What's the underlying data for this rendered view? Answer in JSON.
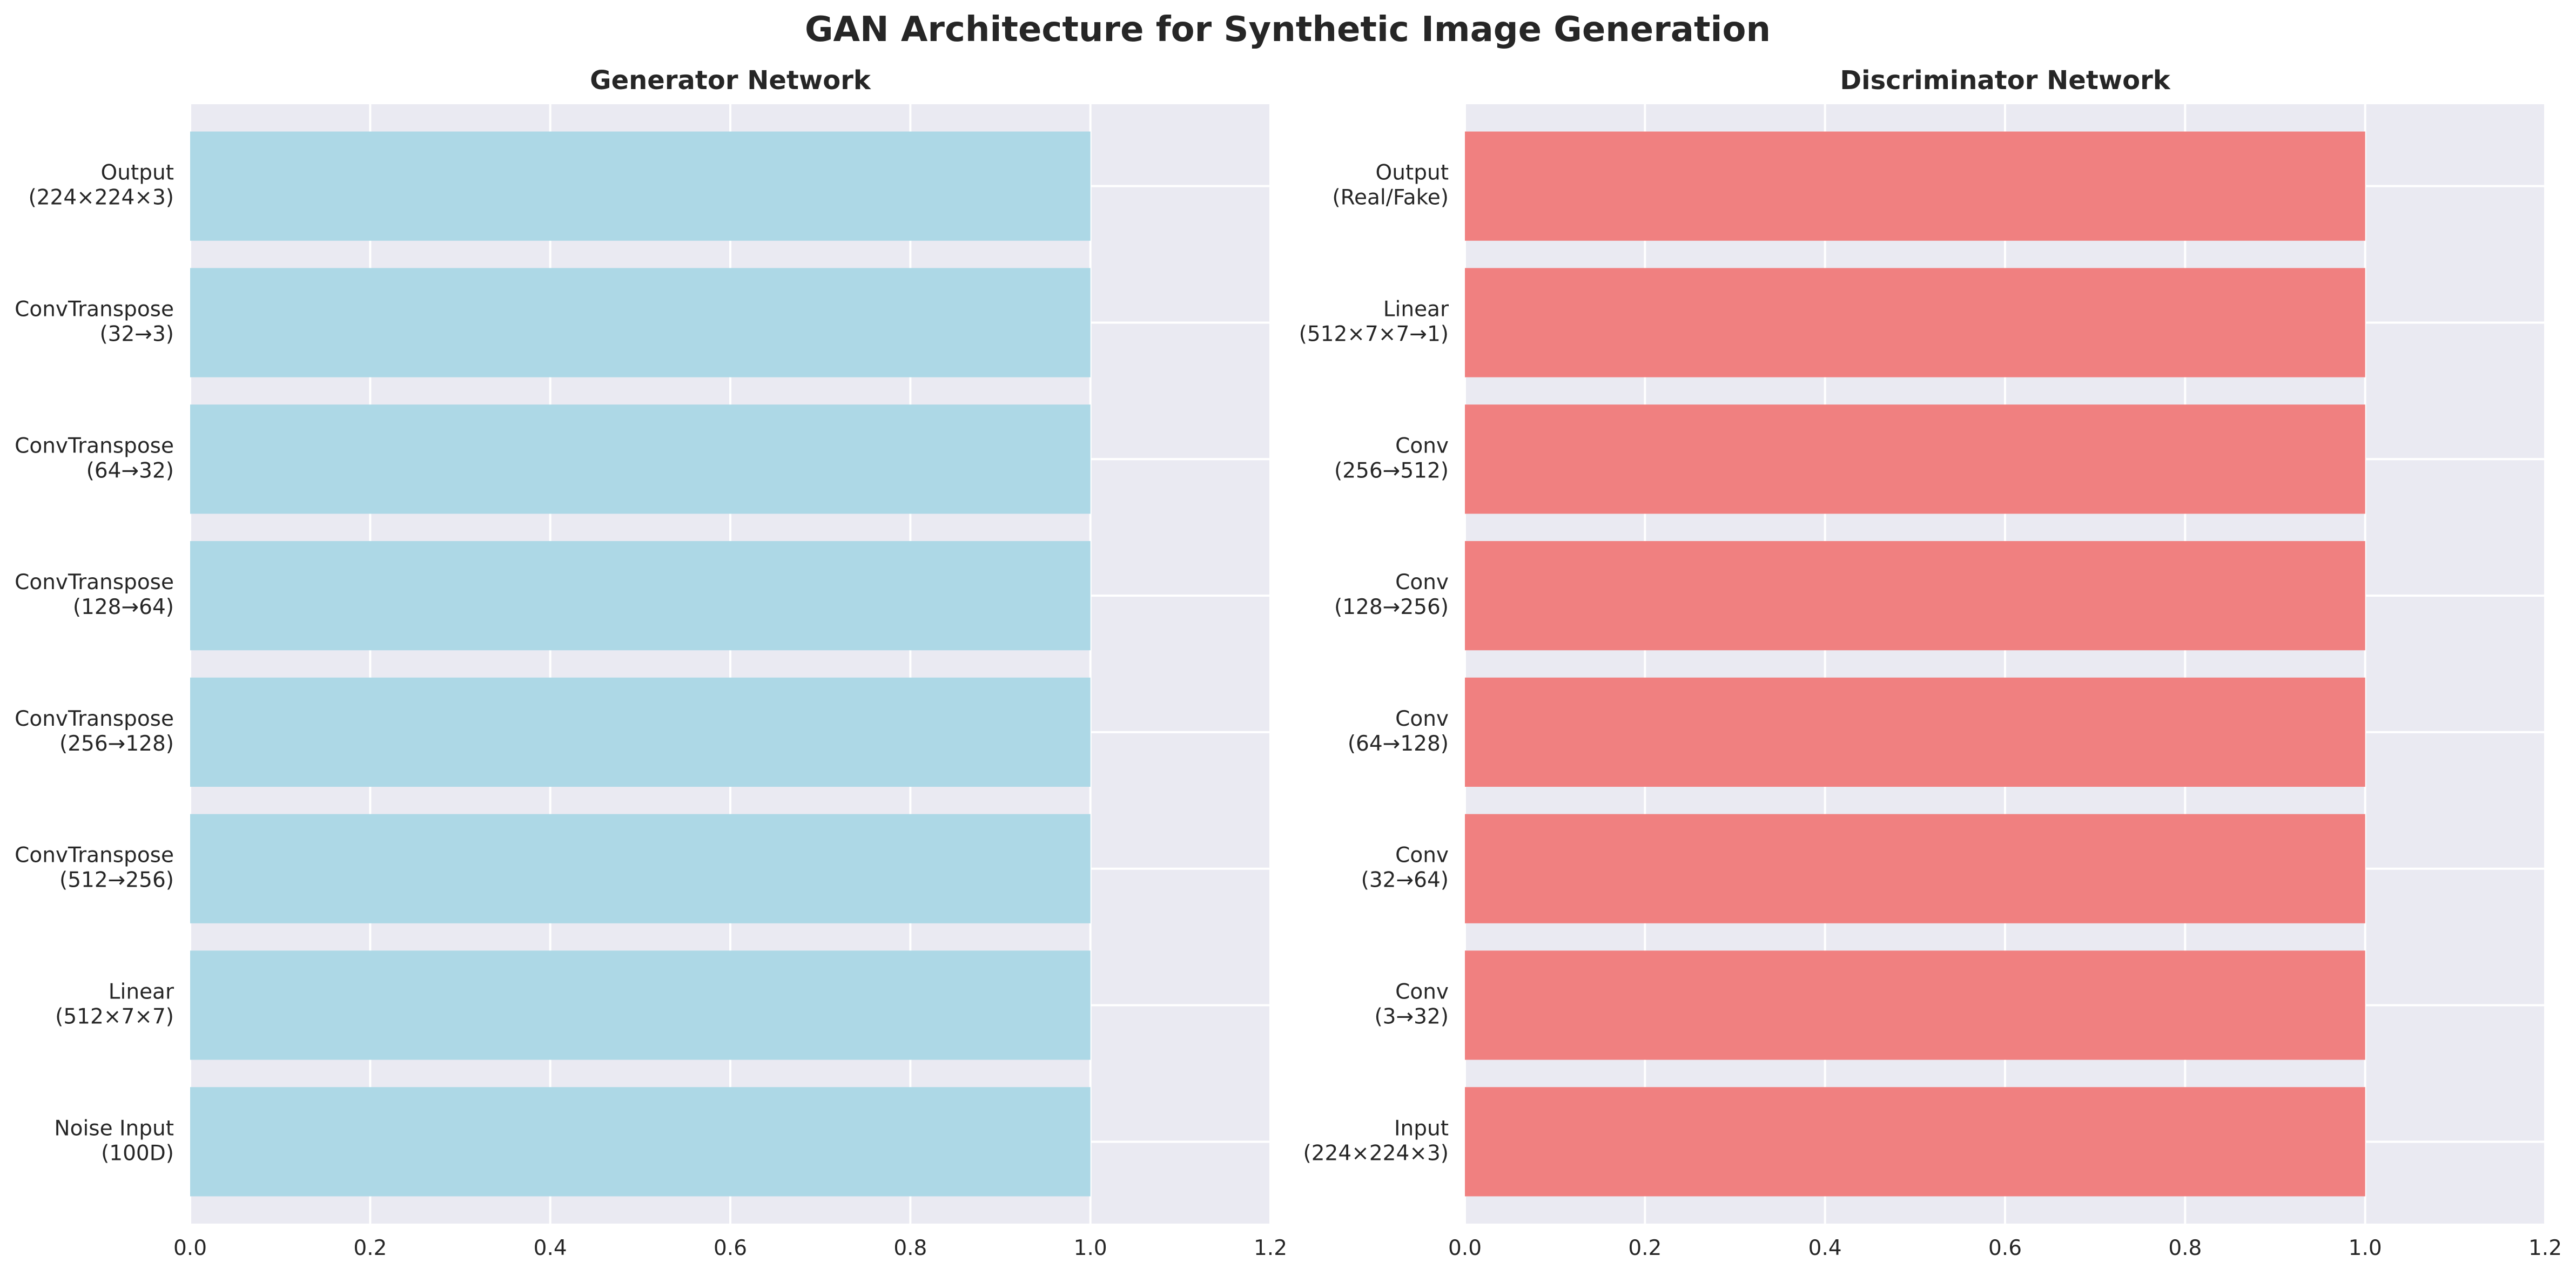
{
  "figure": {
    "title": "GAN Architecture for Synthetic Image Generation"
  },
  "chart_data": [
    {
      "type": "bar",
      "orientation": "horizontal",
      "title": "Generator Network",
      "xlabel": "",
      "ylabel": "",
      "xlim": [
        0,
        1.2
      ],
      "xticks": [
        "0.0",
        "0.2",
        "0.4",
        "0.6",
        "0.8",
        "1.0",
        "1.2"
      ],
      "grid": true,
      "bar_color": "#ADD8E6",
      "categories": [
        [
          "Noise Input",
          "(100D)"
        ],
        [
          "Linear",
          "(512×7×7)"
        ],
        [
          "ConvTranspose",
          "(512→256)"
        ],
        [
          "ConvTranspose",
          "(256→128)"
        ],
        [
          "ConvTranspose",
          "(128→64)"
        ],
        [
          "ConvTranspose",
          "(64→32)"
        ],
        [
          "ConvTranspose",
          "(32→3)"
        ],
        [
          "Output",
          "(224×224×3)"
        ]
      ],
      "values": [
        1,
        1,
        1,
        1,
        1,
        1,
        1,
        1
      ]
    },
    {
      "type": "bar",
      "orientation": "horizontal",
      "title": "Discriminator Network",
      "xlabel": "",
      "ylabel": "",
      "xlim": [
        0,
        1.2
      ],
      "xticks": [
        "0.0",
        "0.2",
        "0.4",
        "0.6",
        "0.8",
        "1.0",
        "1.2"
      ],
      "grid": true,
      "bar_color": "#F08080",
      "categories": [
        [
          "Input",
          "(224×224×3)"
        ],
        [
          "Conv",
          "(3→32)"
        ],
        [
          "Conv",
          "(32→64)"
        ],
        [
          "Conv",
          "(64→128)"
        ],
        [
          "Conv",
          "(128→256)"
        ],
        [
          "Conv",
          "(256→512)"
        ],
        [
          "Linear",
          "(512×7×7→1)"
        ],
        [
          "Output",
          "(Real/Fake)"
        ]
      ],
      "values": [
        1,
        1,
        1,
        1,
        1,
        1,
        1,
        1
      ]
    }
  ],
  "style": {
    "axes_background": "#EAEAF2",
    "grid_color": "#FFFFFF",
    "text_color": "#262626"
  }
}
